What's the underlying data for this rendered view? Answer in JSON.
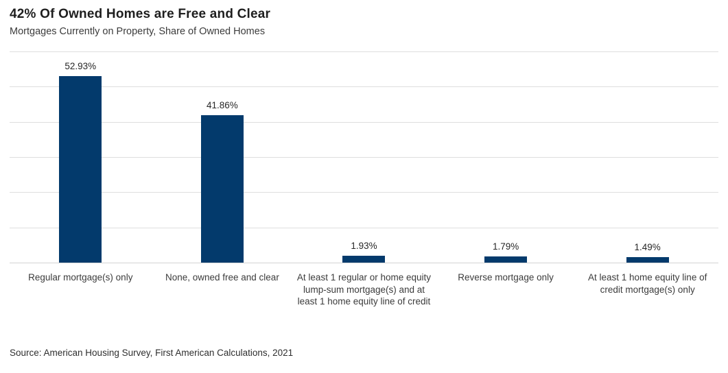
{
  "colors": {
    "bar": "#033a6c",
    "gridline": "#dedede",
    "axis": "#d4d4d4",
    "title": "#1e1e1e",
    "subtitle": "#3b3b3b",
    "value_label": "#262626",
    "category_label": "#3b3b3b",
    "source": "#2e2e2e",
    "background": "#ffffff"
  },
  "chart_data": {
    "type": "bar",
    "title": "42% Of Owned Homes are Free and Clear",
    "subtitle": "Mortgages Currently on Property, Share of Owned Homes",
    "categories": [
      "Regular mortgage(s) only",
      "None, owned free and clear",
      "At least 1 regular or home equity lump-sum mortgage(s) and at least 1 home equity line of credit",
      "Reverse mortgage only",
      "At least 1 home equity line of credit mortgage(s) only"
    ],
    "values": [
      52.93,
      41.86,
      1.93,
      1.79,
      1.49
    ],
    "value_labels": [
      "52.93%",
      "41.86%",
      "1.93%",
      "1.79%",
      "1.49%"
    ],
    "xlabel": "",
    "ylabel": "",
    "ylim": [
      0,
      60
    ],
    "gridline_interval": 10,
    "grid": true,
    "y_axis_tick_labels": "none",
    "legend": "none",
    "source": "Source: American Housing Survey, First American Calculations, 2021"
  }
}
